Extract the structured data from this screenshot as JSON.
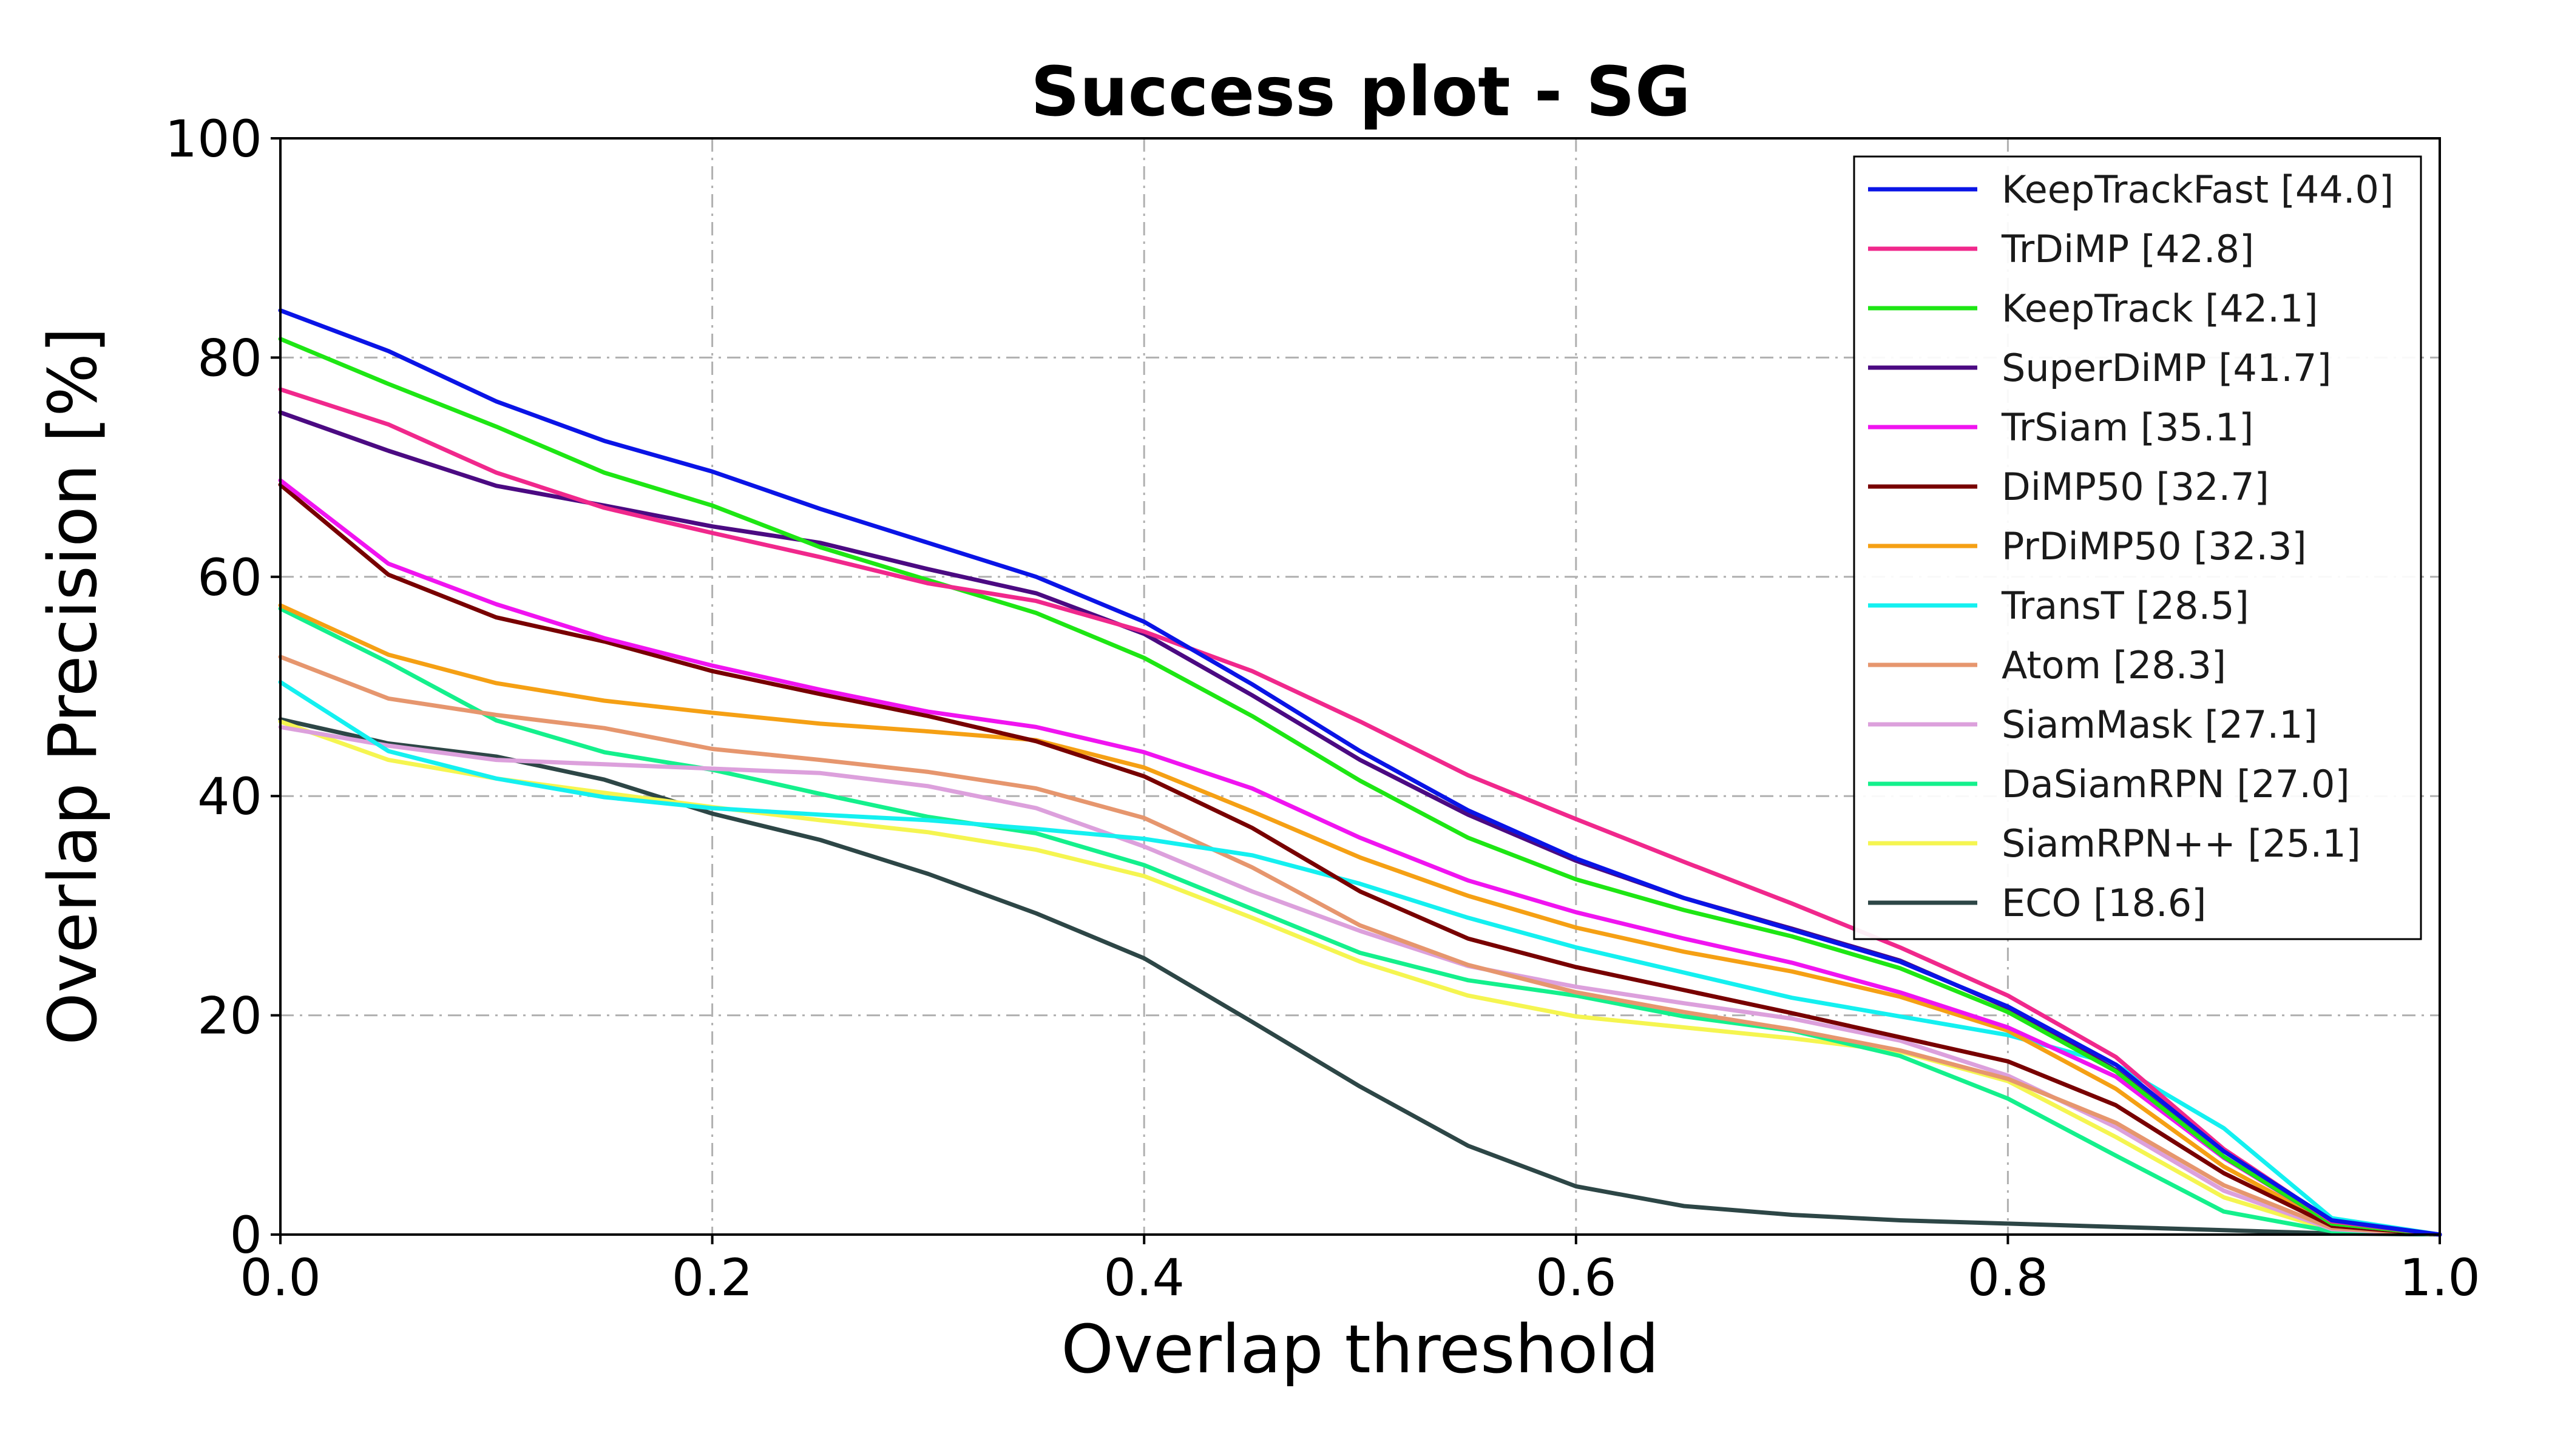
{
  "chart_data": {
    "type": "line",
    "title": "Success plot - SG",
    "xlabel": "Overlap threshold",
    "ylabel": "Overlap Precision [%]",
    "xlim": [
      0.0,
      1.0
    ],
    "ylim": [
      0,
      100
    ],
    "xticks": [
      "0.0",
      "0.2",
      "0.4",
      "0.6",
      "0.8",
      "1.0"
    ],
    "xtick_values": [
      0.0,
      0.2,
      0.4,
      0.6,
      0.8,
      1.0
    ],
    "yticks": [
      "0",
      "20",
      "40",
      "60",
      "80",
      "100"
    ],
    "ytick_values": [
      0,
      20,
      40,
      60,
      80,
      100
    ],
    "grid": true,
    "legend_position": "top-right",
    "x": [
      0.0,
      0.05,
      0.1,
      0.15,
      0.2,
      0.25,
      0.3,
      0.35,
      0.4,
      0.45,
      0.5,
      0.55,
      0.6,
      0.65,
      0.7,
      0.75,
      0.8,
      0.85,
      0.9,
      0.95,
      1.0
    ],
    "series": [
      {
        "name": "KeepTrackFast [44.0]",
        "color": "#0a14e6",
        "values": [
          84.3,
          80.6,
          76.0,
          72.4,
          69.6,
          66.2,
          63.1,
          60.0,
          55.9,
          50.2,
          44.1,
          38.7,
          34.3,
          30.7,
          27.8,
          24.9,
          20.8,
          15.5,
          7.6,
          1.3,
          0.0
        ]
      },
      {
        "name": "TrDiMP [42.8]",
        "color": "#f0288c",
        "values": [
          77.1,
          73.9,
          69.5,
          66.3,
          64.0,
          61.8,
          59.4,
          57.8,
          55.0,
          51.4,
          46.8,
          41.9,
          37.9,
          34.0,
          30.2,
          26.2,
          21.8,
          16.2,
          7.8,
          1.2,
          0.0
        ]
      },
      {
        "name": "KeepTrack [42.1]",
        "color": "#1ee614",
        "values": [
          81.7,
          77.6,
          73.7,
          69.5,
          66.5,
          62.7,
          59.7,
          56.7,
          52.6,
          47.3,
          41.4,
          36.2,
          32.4,
          29.6,
          27.2,
          24.3,
          20.3,
          14.9,
          7.1,
          1.0,
          0.0
        ]
      },
      {
        "name": "SuperDiMP [41.7]",
        "color": "#4b0a82",
        "values": [
          75.0,
          71.5,
          68.3,
          66.5,
          64.6,
          63.1,
          60.7,
          58.5,
          54.8,
          49.2,
          43.3,
          38.3,
          34.1,
          30.7,
          27.9,
          25.0,
          20.7,
          15.0,
          7.1,
          1.0,
          0.0
        ]
      },
      {
        "name": "TrSiam [35.1]",
        "color": "#f014f0",
        "values": [
          68.8,
          61.2,
          57.5,
          54.4,
          51.9,
          49.7,
          47.7,
          46.3,
          44.0,
          40.7,
          36.2,
          32.3,
          29.4,
          27.0,
          24.8,
          22.1,
          18.9,
          14.4,
          7.0,
          1.0,
          0.0
        ]
      },
      {
        "name": "DiMP50 [32.7]",
        "color": "#780000",
        "values": [
          68.4,
          60.2,
          56.3,
          54.1,
          51.4,
          49.3,
          47.3,
          45.0,
          41.8,
          37.1,
          31.3,
          27.0,
          24.4,
          22.3,
          20.2,
          18.0,
          15.8,
          11.8,
          5.6,
          0.8,
          0.0
        ]
      },
      {
        "name": "PrDiMP50 [32.3]",
        "color": "#f5a014",
        "values": [
          57.4,
          52.9,
          50.3,
          48.7,
          47.6,
          46.6,
          45.9,
          45.1,
          42.6,
          38.6,
          34.4,
          30.9,
          28.0,
          25.8,
          24.0,
          21.7,
          18.6,
          13.3,
          6.2,
          0.9,
          0.0
        ]
      },
      {
        "name": "TransT [28.5]",
        "color": "#14f0f0",
        "values": [
          50.4,
          44.1,
          41.6,
          39.9,
          38.9,
          38.3,
          37.8,
          37.0,
          36.1,
          34.6,
          32.0,
          28.9,
          26.2,
          23.9,
          21.6,
          19.9,
          18.2,
          15.5,
          9.7,
          1.5,
          0.0
        ]
      },
      {
        "name": "Atom [28.3]",
        "color": "#e6966e",
        "values": [
          52.7,
          48.9,
          47.4,
          46.2,
          44.3,
          43.3,
          42.2,
          40.7,
          38.0,
          33.5,
          28.2,
          24.6,
          22.1,
          20.3,
          18.7,
          16.8,
          14.2,
          10.2,
          4.5,
          0.6,
          0.0
        ]
      },
      {
        "name": "SiamMask [27.1]",
        "color": "#dca0dc",
        "values": [
          46.3,
          44.6,
          43.3,
          42.9,
          42.5,
          42.1,
          40.9,
          38.9,
          35.4,
          31.3,
          27.7,
          24.5,
          22.6,
          21.1,
          19.7,
          17.7,
          14.5,
          9.8,
          4.0,
          0.5,
          0.0
        ]
      },
      {
        "name": "DaSiamRPN [27.0]",
        "color": "#14f08c",
        "values": [
          57.1,
          52.2,
          46.9,
          44.0,
          42.4,
          40.2,
          38.1,
          36.6,
          33.7,
          29.7,
          25.7,
          23.2,
          21.8,
          19.9,
          18.6,
          16.3,
          12.4,
          7.2,
          2.1,
          0.3,
          0.0
        ]
      },
      {
        "name": "SiamRPN++ [25.1]",
        "color": "#f5f550",
        "values": [
          46.8,
          43.3,
          41.6,
          40.3,
          39.0,
          37.8,
          36.7,
          35.1,
          32.7,
          28.9,
          24.9,
          21.8,
          19.9,
          18.9,
          17.9,
          16.7,
          14.0,
          8.9,
          3.4,
          0.4,
          0.0
        ]
      },
      {
        "name": "ECO [18.6]",
        "color": "#2d4646",
        "values": [
          47.0,
          44.8,
          43.6,
          41.5,
          38.4,
          36.0,
          32.9,
          29.3,
          25.2,
          19.4,
          13.5,
          8.1,
          4.4,
          2.6,
          1.8,
          1.3,
          1.0,
          0.7,
          0.4,
          0.1,
          0.0
        ]
      }
    ]
  }
}
